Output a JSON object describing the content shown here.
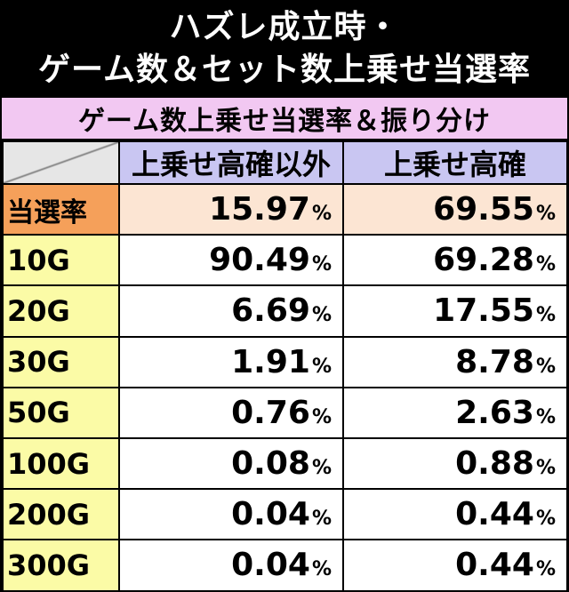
{
  "title": {
    "line1": "ハズレ成立時・",
    "line2": "ゲーム数＆セット数上乗せ当選率"
  },
  "subheader": "ゲーム数上乗せ当選率＆振り分け",
  "table": {
    "columns": [
      "上乗せ高確以外",
      "上乗せ高確"
    ],
    "percent_sign": "%",
    "rows": [
      {
        "label": "当選率",
        "values": [
          "15.97",
          "69.55"
        ]
      },
      {
        "label": "10G",
        "values": [
          "90.49",
          "69.28"
        ]
      },
      {
        "label": "20G",
        "values": [
          "6.69",
          "17.55"
        ]
      },
      {
        "label": "30G",
        "values": [
          "1.91",
          "8.78"
        ]
      },
      {
        "label": "50G",
        "values": [
          "0.76",
          "2.63"
        ]
      },
      {
        "label": "100G",
        "values": [
          "0.08",
          "0.88"
        ]
      },
      {
        "label": "200G",
        "values": [
          "0.04",
          "0.44"
        ]
      },
      {
        "label": "300G",
        "values": [
          "0.04",
          "0.44"
        ]
      }
    ]
  },
  "colors": {
    "title_bg": "#000000",
    "subheader_bg": "#f2c8f2",
    "column_header_bg": "#c9c6f2",
    "rate_label_bg": "#f5a05a",
    "rate_value_bg": "#fce5d3",
    "row_label_bg": "#fbfba6"
  }
}
